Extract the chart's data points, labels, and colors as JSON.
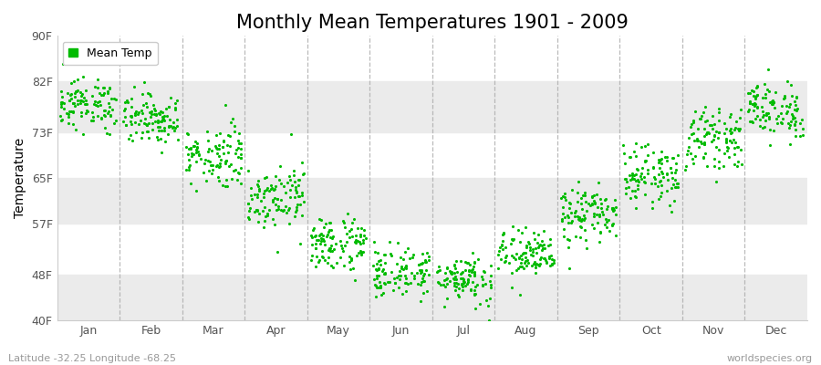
{
  "title": "Monthly Mean Temperatures 1901 - 2009",
  "ylabel": "Temperature",
  "yticks": [
    40,
    48,
    57,
    65,
    73,
    82,
    90
  ],
  "ytick_labels": [
    "40F",
    "48F",
    "57F",
    "65F",
    "73F",
    "82F",
    "90F"
  ],
  "ylim": [
    40,
    90
  ],
  "months": [
    "Jan",
    "Feb",
    "Mar",
    "Apr",
    "May",
    "Jun",
    "Jul",
    "Aug",
    "Sep",
    "Oct",
    "Nov",
    "Dec"
  ],
  "dot_color": "#00BB00",
  "bg_color": "#FFFFFF",
  "plot_bg_color": "#FFFFFF",
  "stripe_color": "#EBEBEB",
  "dash_color": "#AAAAAA",
  "title_fontsize": 15,
  "label_fontsize": 10,
  "tick_fontsize": 9,
  "footer_left": "Latitude -32.25 Longitude -68.25",
  "footer_right": "worldspecies.org",
  "legend_label": "Mean Temp",
  "monthly_means": [
    78.0,
    75.5,
    69.0,
    62.0,
    53.5,
    48.5,
    47.5,
    51.5,
    58.5,
    65.5,
    72.0,
    77.0
  ],
  "monthly_stds": [
    2.2,
    2.2,
    2.8,
    2.8,
    2.5,
    2.2,
    2.2,
    2.2,
    2.5,
    2.5,
    2.5,
    2.5
  ],
  "n_years": 109
}
